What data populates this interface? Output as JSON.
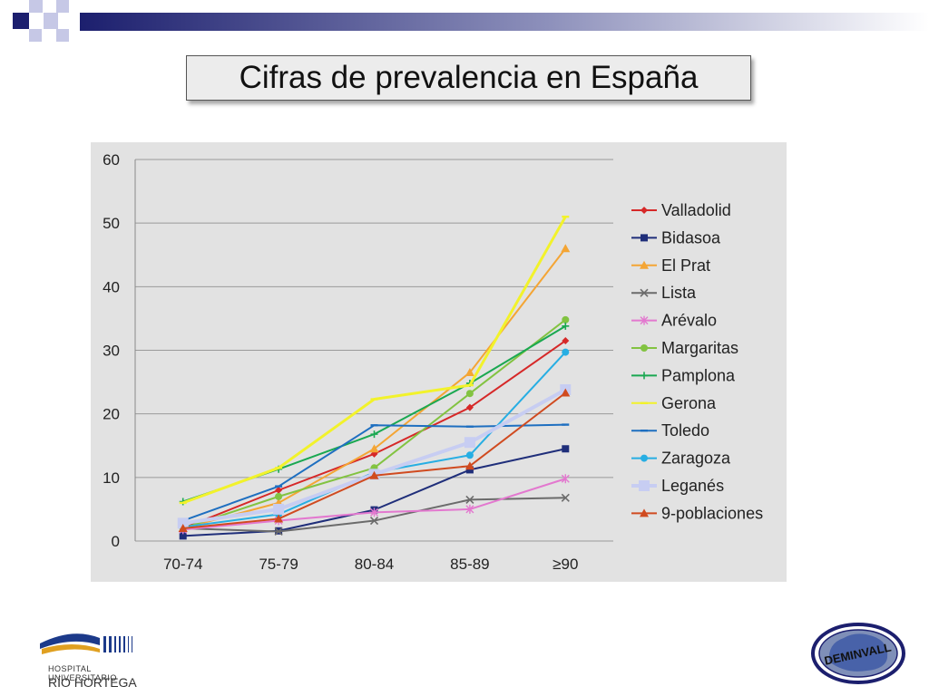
{
  "slide": {
    "title": "Cifras de prevalencia en España"
  },
  "logos": {
    "left_line1": "HOSPITAL UNIVERSITARIO",
    "left_line2": "RÍO HORTEGA",
    "right_text": "DEMINVALL"
  },
  "colors": {
    "header_square": "#1c1f6e",
    "accent_square": "#c6c8e6",
    "plot_background": "#e2e2e2"
  },
  "chart_data": {
    "type": "line",
    "title": "",
    "xlabel": "",
    "ylabel": "",
    "categories": [
      "70-74",
      "75-79",
      "80-84",
      "85-89",
      "≥90"
    ],
    "ylim": [
      0,
      60
    ],
    "yticks": [
      0,
      10,
      20,
      30,
      40,
      50,
      60
    ],
    "grid": "horizontal",
    "legend": "right",
    "series": [
      {
        "name": "Valladolid",
        "color": "#d62828",
        "marker": "diamond",
        "values": [
          2.0,
          8.0,
          13.7,
          21.0,
          31.5
        ]
      },
      {
        "name": "Bidasoa",
        "color": "#1f2e7a",
        "marker": "square",
        "values": [
          0.8,
          1.6,
          4.9,
          11.2,
          14.5
        ]
      },
      {
        "name": "El Prat",
        "color": "#f4a534",
        "marker": "triangle",
        "values": [
          2.0,
          6.0,
          14.5,
          26.5,
          46.0
        ]
      },
      {
        "name": "Lista",
        "color": "#6b6b6b",
        "marker": "x",
        "values": [
          2.0,
          1.5,
          3.2,
          6.5,
          6.8
        ]
      },
      {
        "name": "Arévalo",
        "color": "#e378cf",
        "marker": "star",
        "values": [
          1.8,
          3.2,
          4.5,
          5.0,
          9.8
        ]
      },
      {
        "name": "Margaritas",
        "color": "#82c341",
        "marker": "circle",
        "values": [
          2.0,
          7.0,
          11.5,
          23.2,
          34.8
        ]
      },
      {
        "name": "Pamplona",
        "color": "#1aa851",
        "marker": "plus",
        "values": [
          6.2,
          11.3,
          16.8,
          24.8,
          33.8
        ]
      },
      {
        "name": "Gerona",
        "color": "#f2f22b",
        "marker": "dash",
        "values": [
          6.0,
          11.5,
          22.3,
          24.5,
          51.0
        ]
      },
      {
        "name": "Toledo",
        "color": "#1e6fc0",
        "marker": "dash",
        "values": [
          3.2,
          8.6,
          18.2,
          18.0,
          18.3
        ]
      },
      {
        "name": "Zaragoza",
        "color": "#27aee3",
        "marker": "circle",
        "values": [
          2.2,
          4.2,
          10.8,
          13.5,
          29.7
        ]
      },
      {
        "name": "Leganés",
        "color": "#c7cdf2",
        "marker": "bigsquare",
        "values": [
          2.8,
          5.0,
          10.5,
          15.5,
          23.8
        ]
      },
      {
        "name": "9-poblaciones",
        "color": "#d04a1f",
        "marker": "triangle",
        "values": [
          2.0,
          3.5,
          10.3,
          11.8,
          23.3
        ]
      }
    ]
  }
}
